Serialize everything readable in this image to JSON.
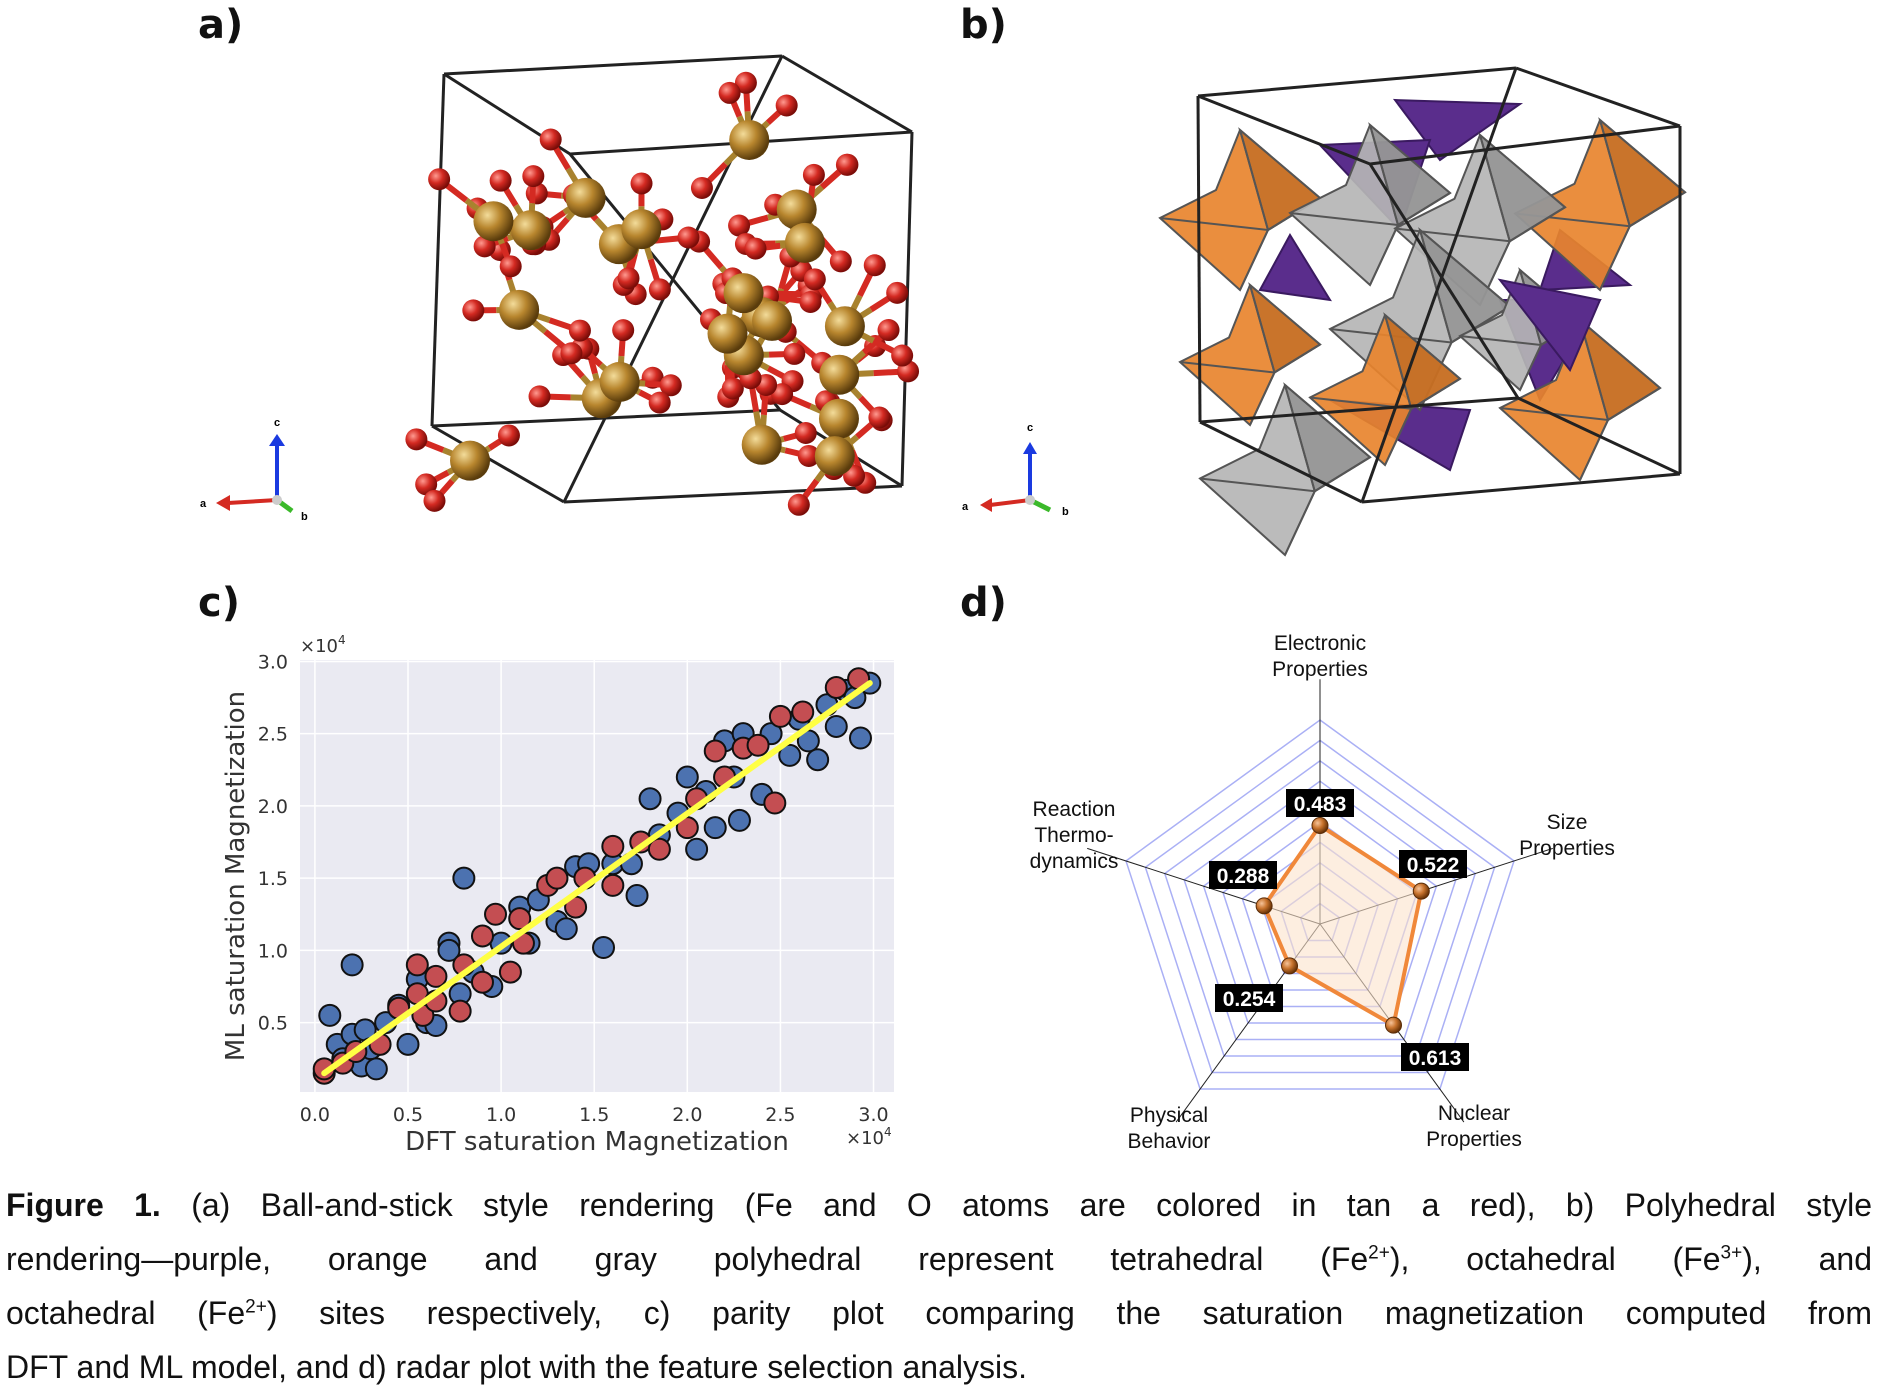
{
  "panels": {
    "a": {
      "label": "a)",
      "axes": {
        "a": "a",
        "b": "b",
        "c": "c"
      }
    },
    "b": {
      "label": "b)",
      "axes": {
        "a": "a",
        "b": "b",
        "c": "c"
      }
    },
    "c": {
      "label": "c)"
    },
    "d": {
      "label": "d)"
    }
  },
  "colors": {
    "fe": "#b8862e",
    "o": "#d42a22",
    "octa_fe3": "#e8842e",
    "octa_fe2": "#a8a8a8",
    "tetra": "#5a2d8c",
    "blue": "#4c72b0",
    "red": "#c44e52",
    "fit": "#ffff44",
    "radar": "#f0883a"
  },
  "chart_data": [
    {
      "type": "scatter",
      "title": "",
      "xlabel": "DFT saturation Magnetization",
      "ylabel": "ML saturation Magnetization",
      "x_multiplier": "×10",
      "y_multiplier": "×10",
      "multiplier_exp": "4",
      "xlim": [
        -0.08,
        3.11
      ],
      "ylim": [
        0.02,
        3.01
      ],
      "xticks": [
        "0.0",
        "0.5",
        "1.0",
        "1.5",
        "2.0",
        "2.5",
        "3.0"
      ],
      "yticks": [
        "0.5",
        "1.0",
        "1.5",
        "2.0",
        "2.5",
        "3.0"
      ],
      "grid": true,
      "series": [
        {
          "name": "blue",
          "color": "#4c72b0",
          "points": [
            [
              0.08,
              0.55
            ],
            [
              0.12,
              0.35
            ],
            [
              0.15,
              0.25
            ],
            [
              0.2,
              0.42
            ],
            [
              0.2,
              0.9
            ],
            [
              0.25,
              0.2
            ],
            [
              0.27,
              0.45
            ],
            [
              0.3,
              0.32
            ],
            [
              0.33,
              0.18
            ],
            [
              0.38,
              0.5
            ],
            [
              0.45,
              0.62
            ],
            [
              0.5,
              0.35
            ],
            [
              0.55,
              0.8
            ],
            [
              0.6,
              0.5
            ],
            [
              0.65,
              0.48
            ],
            [
              0.72,
              1.05
            ],
            [
              0.72,
              1.0
            ],
            [
              0.78,
              0.7
            ],
            [
              0.8,
              1.5
            ],
            [
              0.85,
              0.85
            ],
            [
              0.95,
              0.75
            ],
            [
              1.0,
              1.05
            ],
            [
              1.1,
              1.3
            ],
            [
              1.15,
              1.05
            ],
            [
              1.2,
              1.35
            ],
            [
              1.3,
              1.2
            ],
            [
              1.35,
              1.15
            ],
            [
              1.4,
              1.58
            ],
            [
              1.47,
              1.6
            ],
            [
              1.55,
              1.02
            ],
            [
              1.6,
              1.6
            ],
            [
              1.7,
              1.6
            ],
            [
              1.73,
              1.38
            ],
            [
              1.8,
              2.05
            ],
            [
              1.85,
              1.8
            ],
            [
              1.95,
              1.95
            ],
            [
              2.0,
              2.2
            ],
            [
              2.05,
              1.7
            ],
            [
              2.1,
              2.1
            ],
            [
              2.15,
              1.85
            ],
            [
              2.2,
              2.45
            ],
            [
              2.25,
              2.2
            ],
            [
              2.28,
              1.9
            ],
            [
              2.3,
              2.5
            ],
            [
              2.4,
              2.08
            ],
            [
              2.45,
              2.5
            ],
            [
              2.55,
              2.35
            ],
            [
              2.6,
              2.6
            ],
            [
              2.65,
              2.45
            ],
            [
              2.7,
              2.32
            ],
            [
              2.75,
              2.7
            ],
            [
              2.8,
              2.55
            ],
            [
              2.85,
              2.8
            ],
            [
              2.9,
              2.75
            ],
            [
              2.93,
              2.47
            ],
            [
              2.98,
              2.85
            ]
          ]
        },
        {
          "name": "red",
          "color": "#c44e52",
          "points": [
            [
              0.05,
              0.15
            ],
            [
              0.05,
              0.18
            ],
            [
              0.15,
              0.22
            ],
            [
              0.22,
              0.3
            ],
            [
              0.35,
              0.35
            ],
            [
              0.45,
              0.6
            ],
            [
              0.55,
              0.9
            ],
            [
              0.55,
              0.7
            ],
            [
              0.58,
              0.55
            ],
            [
              0.65,
              0.82
            ],
            [
              0.65,
              0.65
            ],
            [
              0.78,
              0.58
            ],
            [
              0.8,
              0.9
            ],
            [
              0.9,
              1.1
            ],
            [
              0.9,
              0.78
            ],
            [
              0.97,
              1.25
            ],
            [
              1.05,
              0.85
            ],
            [
              1.1,
              1.22
            ],
            [
              1.12,
              1.05
            ],
            [
              1.25,
              1.45
            ],
            [
              1.3,
              1.5
            ],
            [
              1.4,
              1.3
            ],
            [
              1.45,
              1.5
            ],
            [
              1.6,
              1.45
            ],
            [
              1.6,
              1.72
            ],
            [
              1.75,
              1.75
            ],
            [
              1.85,
              1.7
            ],
            [
              2.0,
              1.85
            ],
            [
              2.05,
              2.05
            ],
            [
              2.15,
              2.38
            ],
            [
              2.2,
              2.2
            ],
            [
              2.3,
              2.4
            ],
            [
              2.38,
              2.42
            ],
            [
              2.47,
              2.02
            ],
            [
              2.5,
              2.62
            ],
            [
              2.62,
              2.65
            ],
            [
              2.8,
              2.82
            ],
            [
              2.92,
              2.88
            ]
          ]
        }
      ],
      "fit_line": [
        [
          0.05,
          0.15
        ],
        [
          2.98,
          2.85
        ]
      ]
    },
    {
      "type": "radar",
      "axes": [
        {
          "label": [
            "Electronic",
            "Properties"
          ],
          "value": 0.483,
          "value_label": "0.483"
        },
        {
          "label": [
            "Size",
            "Properties"
          ],
          "value": 0.522,
          "value_label": "0.522"
        },
        {
          "label": [
            "Nuclear",
            "Properties"
          ],
          "value": 0.613,
          "value_label": "0.613"
        },
        {
          "label": [
            "Physical",
            "Behavior"
          ],
          "value": 0.254,
          "value_label": "0.254"
        },
        {
          "label": [
            "Reaction",
            "Thermo-",
            "dynamics"
          ],
          "value": 0.288,
          "value_label": "0.288"
        }
      ],
      "range": [
        0,
        1
      ],
      "rings": 10
    }
  ],
  "caption": {
    "figure_label": "Figure 1.",
    "line1": "(a) Ball-and-stick style rendering (Fe and O atoms are colored in tan a red), b) Polyhedral style",
    "line2a": "rendering—purple, orange and gray polyhedral represent tetrahedral (Fe",
    "sup_2plus": "2+",
    "line2b": "), octahedral (Fe",
    "sup_3plus": "3+",
    "line2c": "), and",
    "line3a": "octahedral (Fe",
    "line3b": ") sites respectively, c) parity plot comparing the saturation magnetization computed from",
    "line4": "DFT and ML model, and d) radar plot with the feature selection analysis."
  }
}
